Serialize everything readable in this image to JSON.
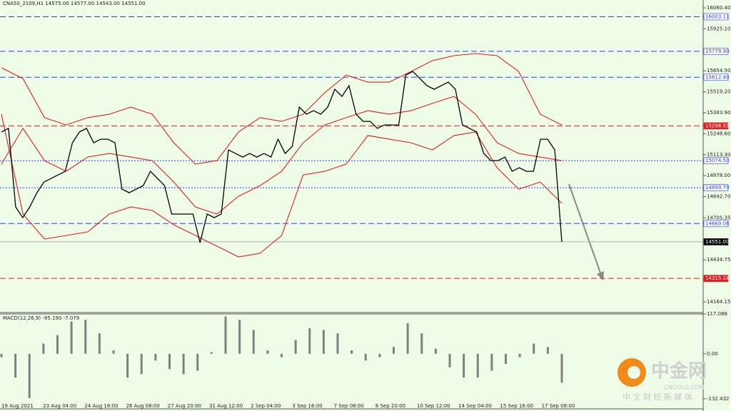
{
  "chart_data": [
    {
      "type": "line",
      "title": "CNA50_2109,H1  14575.00 14577.00 14543.00 14551.00",
      "ylim": [
        14095,
        16111
      ],
      "yticks": [
        {
          "value": 16060.4,
          "label": "16060.40"
        },
        {
          "value": 15925.1,
          "label": "15925.10"
        },
        {
          "value": 15654.5,
          "label": "15654.50"
        },
        {
          "value": 15519.2,
          "label": "15519.20"
        },
        {
          "value": 15383.9,
          "label": "15383.90"
        },
        {
          "value": 15248.6,
          "label": "15248.60"
        },
        {
          "value": 15113.3,
          "label": "15113.30"
        },
        {
          "value": 14978,
          "label": "14978.00"
        },
        {
          "value": 14842.7,
          "label": "14842.70"
        },
        14705.35,
        14434.75,
        14164.15
      ],
      "xtick_labels": [
        "19 Aug 2021",
        "23 Aug 04:00",
        "24 Aug 16:00",
        "26 Aug 08:00",
        "27 Aug 20:00",
        "31 Aug 12:00",
        "2 Sep 04:00",
        "3 Sep 16:00",
        "7 Sep 08:00",
        "8 Sep 20:00",
        "10 Sep 12:00",
        "14 Sep 04:00",
        "15 Sep 16:00",
        "17 Sep 08:00"
      ],
      "levels": [
        {
          "value": 16003.11,
          "color": "#2a3cff",
          "dash": "dashed"
        },
        {
          "value": 15779.9,
          "label": "15779.90",
          "color": "#2a3cff",
          "dash": "dashed"
        },
        {
          "value": 15612.49,
          "color": "#2a3cff",
          "dash": "dashed"
        },
        {
          "value": 15298.93,
          "color": "#e02020",
          "dash": "dashed"
        },
        {
          "value": 15074.5,
          "label": "15074.50",
          "color": "#2a3cff",
          "dash": "dotted"
        },
        {
          "value": 14899.79,
          "color": "#2a3cff",
          "dash": "dotted"
        },
        {
          "value": 14669.06,
          "color": "#2a3cff",
          "dash": "dashed"
        },
        {
          "value": 14551,
          "label": "14551.00",
          "color": "#000000",
          "dash": "solid"
        },
        {
          "value": 14315.18,
          "color": "#e02020",
          "dash": "dashed"
        }
      ],
      "series": [
        {
          "color": "#000000",
          "values": [
            15260,
            15283,
            14776,
            14707,
            14776,
            14868,
            14937,
            14960,
            14983,
            15006,
            15190,
            15260,
            15283,
            15190,
            15213,
            15213,
            15190,
            14891,
            14868,
            14891,
            14914,
            15006,
            14960,
            14914,
            14730,
            14730,
            14730,
            14730,
            14546,
            14730,
            14707,
            14730,
            15144,
            15121,
            15098,
            15121,
            15098,
            15121,
            15098,
            15213,
            15121,
            15167,
            15420,
            15374,
            15397,
            15374,
            15420,
            15535,
            15489,
            15558,
            15374,
            15328,
            15328,
            15283,
            15305,
            15305,
            15305,
            15627,
            15650,
            15604,
            15558,
            15535,
            15558,
            15581,
            15535,
            15305,
            15283,
            15260,
            15121,
            15075,
            15075,
            15098,
            15006,
            15029,
            15006,
            15006,
            15213,
            15213,
            15144,
            14551
          ]
        },
        {
          "color": "#e02020",
          "values": [
            15674,
            15604,
            15352,
            15305,
            15352,
            15374,
            15420,
            15374,
            15190,
            15053,
            15075,
            15260,
            15352,
            15328,
            15374,
            15513,
            15627,
            15581,
            15581,
            15650,
            15720,
            15752,
            15766,
            15752,
            15650,
            15374,
            15305
          ]
        },
        {
          "color": "#e02020",
          "values": [
            15053,
            15283,
            15075,
            15006,
            15098,
            15121,
            15098,
            15075,
            14937,
            14776,
            14730,
            14845,
            14914,
            15006,
            15190,
            15305,
            15352,
            15397,
            15374,
            15397,
            15444,
            15489,
            15374,
            15190,
            15121,
            15098,
            15075
          ]
        },
        {
          "color": "#e02020",
          "values": [
            15374,
            14730,
            14569,
            14592,
            14615,
            14730,
            14776,
            14753,
            14661,
            14592,
            14523,
            14454,
            14477,
            14592,
            14983,
            15006,
            15053,
            15237,
            15213,
            15190,
            15144,
            15237,
            15260,
            15029,
            14891,
            14937,
            14799
          ]
        }
      ]
    },
    {
      "type": "bar",
      "title": "MACD(12,26,9) -95.190 -7.079",
      "color": "#808080",
      "ylim": [
        -160,
        117.086
      ],
      "yticks": [
        117.086,
        {
          "value": 0,
          "label": "0.00"
        },
        -132.432
      ],
      "values": [
        -10,
        -70,
        -130,
        30,
        55,
        95,
        100,
        60,
        10,
        -70,
        -60,
        -20,
        -45,
        -60,
        -50,
        5,
        110,
        100,
        70,
        10,
        -10,
        40,
        75,
        70,
        60,
        10,
        -20,
        -10,
        20,
        90,
        60,
        15,
        -40,
        -70,
        -70,
        -50,
        -30,
        -10,
        30,
        20,
        -85
      ]
    }
  ],
  "watermark": {
    "title": "中金网",
    "site": "CNGOLD.COM",
    "slogan": "中 文 财 经 新 媒 体"
  }
}
